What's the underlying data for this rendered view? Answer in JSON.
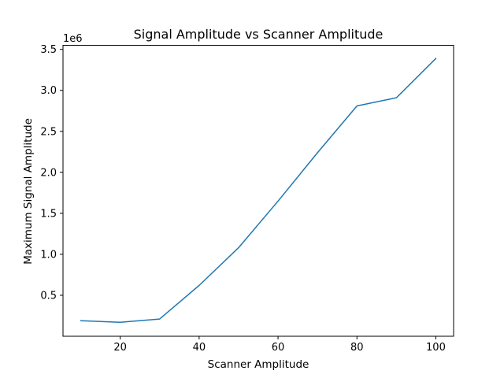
{
  "chart_data": {
    "type": "line",
    "title": "Signal Amplitude vs Scanner Amplitude",
    "xlabel": "Scanner Amplitude",
    "ylabel": "Maximum Signal Amplitude",
    "y_offset_label": "1e6",
    "xlim": [
      5.5,
      104.5
    ],
    "ylim": [
      0.0,
      3.55
    ],
    "x_ticks": [
      20,
      40,
      60,
      80,
      100
    ],
    "x_tick_labels": [
      "20",
      "40",
      "60",
      "80",
      "100"
    ],
    "y_ticks": [
      0.5,
      1.0,
      1.5,
      2.0,
      2.5,
      3.0,
      3.5
    ],
    "y_tick_labels": [
      "0.5",
      "1.0",
      "1.5",
      "2.0",
      "2.5",
      "3.0",
      "3.5"
    ],
    "grid": false,
    "color": "#1f77b4",
    "series": [
      {
        "x": [
          10,
          20,
          30,
          40,
          50,
          60,
          70,
          80,
          90,
          100
        ],
        "y": [
          0.19,
          0.17,
          0.21,
          0.62,
          1.08,
          1.65,
          2.24,
          2.81,
          2.91,
          3.39
        ]
      }
    ]
  }
}
